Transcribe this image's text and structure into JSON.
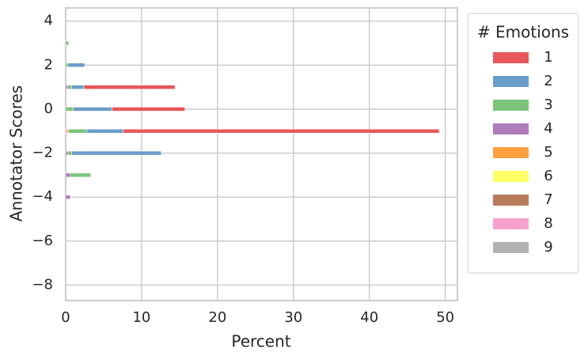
{
  "chart_data": {
    "type": "stacked-barh",
    "x_label": "Percent",
    "y_label": "Annotator Scores",
    "y": [
      3,
      2,
      1,
      0,
      -1,
      -2,
      -3,
      -4
    ],
    "legend_title": "# Emotions",
    "legend": "outside right",
    "series": [
      {
        "name": "1",
        "color": "#e9575a",
        "values": [
          0,
          0,
          12.0,
          9.6,
          41.6,
          0,
          0,
          0
        ]
      },
      {
        "name": "2",
        "color": "#6a9dc9",
        "values": [
          0,
          2.2,
          1.6,
          5.1,
          4.8,
          11.8,
          0,
          0
        ]
      },
      {
        "name": "3",
        "color": "#7cc47a",
        "values": [
          0.4,
          0.3,
          0.5,
          1.0,
          2.4,
          0.5,
          2.7,
          0
        ]
      },
      {
        "name": "4",
        "color": "#b07cbb",
        "values": [
          0,
          0,
          0.3,
          0,
          0,
          0.3,
          0.6,
          0.6
        ]
      },
      {
        "name": "5",
        "color": "#ff9f40",
        "values": [
          0,
          0,
          0,
          0,
          0.2,
          0,
          0,
          0
        ]
      },
      {
        "name": "6",
        "color": "#ffff66",
        "values": [
          0,
          0,
          0,
          0,
          0,
          0,
          0,
          0
        ]
      },
      {
        "name": "7",
        "color": "#b97c5b",
        "values": [
          0,
          0,
          0,
          0,
          0,
          0,
          0,
          0
        ]
      },
      {
        "name": "8",
        "color": "#f6a2cb",
        "values": [
          0,
          0,
          0,
          0,
          0.2,
          0,
          0,
          0
        ]
      },
      {
        "name": "9",
        "color": "#b2b2b2",
        "values": [
          0,
          0,
          0,
          0,
          0,
          0,
          0,
          0
        ]
      }
    ],
    "xlim": [
      0,
      51.6
    ],
    "xticks": [
      0,
      10,
      20,
      30,
      40,
      50
    ],
    "ylim": [
      -8.7,
      4.6
    ],
    "yticks": [
      {
        "value": -8,
        "label": "−8"
      },
      {
        "value": -6,
        "label": "−6"
      },
      {
        "value": -4,
        "label": "−4"
      },
      {
        "value": -2,
        "label": "−2"
      },
      0,
      2,
      4
    ],
    "grid": true
  }
}
